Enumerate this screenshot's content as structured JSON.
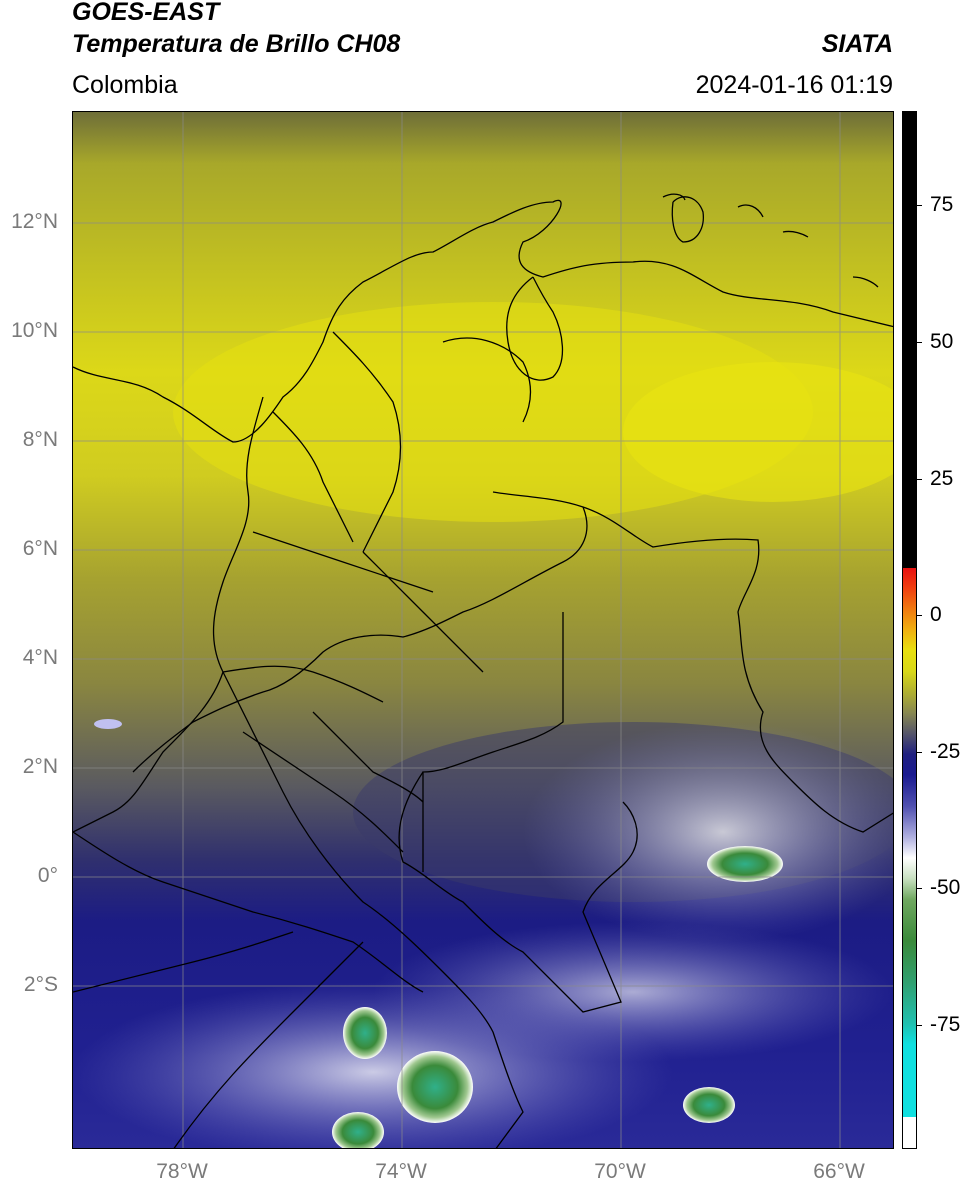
{
  "header": {
    "title_line1": "GOES-EAST",
    "title_line2": "Temperatura de Brillo CH08",
    "brand": "SIATA",
    "region": "Colombia",
    "datetime": "2024-01-16 01:19"
  },
  "map": {
    "latitude_labels": [
      "12°N",
      "10°N",
      "8°N",
      "6°N",
      "4°N",
      "2°N",
      "0°",
      "2°S"
    ],
    "longitude_labels": [
      "78°W",
      "74°W",
      "70°W",
      "66°W"
    ],
    "colors": {
      "warm_yellow": "#e8e010",
      "mid_olive": "#8a8a40",
      "cold_navy": "#1a1a88",
      "cloud_white": "#f0f0ff",
      "deep_green": "#3a8a3a",
      "border_line": "#000000"
    }
  },
  "colorbar": {
    "tick_labels": [
      "75",
      "50",
      "25",
      "0",
      "-25",
      "-50",
      "-75"
    ]
  }
}
